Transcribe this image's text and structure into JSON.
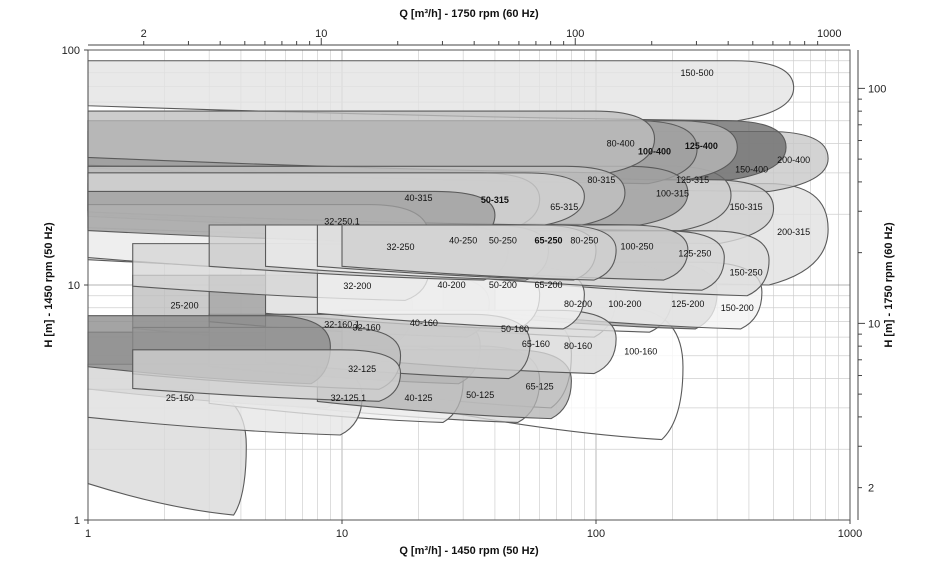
{
  "chart_data": {
    "type": "area",
    "x_scale": "log",
    "y_scale": "log",
    "xlabel_bottom": "Q [m³/h] - 1450 rpm (50 Hz)",
    "xlabel_top": "Q [m³/h] - 1750 rpm (60 Hz)",
    "ylabel_left": "H [m] - 1450 rpm (50 Hz)",
    "ylabel_right": "H [m] - 1750 rpm (60 Hz)",
    "xlim": [
      1,
      1000
    ],
    "ylim": [
      1,
      100
    ],
    "x_ticks_bottom": [
      "1",
      "10",
      "100",
      "1000"
    ],
    "x_ticks_top": [
      "2",
      "10",
      "100",
      "1000"
    ],
    "x_ticks_top_values": [
      2,
      10,
      100,
      1000
    ],
    "y_ticks_left": [
      "1",
      "10",
      "100"
    ],
    "y_ticks_right": [
      "2",
      "10",
      "100"
    ],
    "y_ticks_right_values": [
      2,
      10,
      100
    ],
    "secondary_axis_factor_q": 1.2069,
    "secondary_axis_factor_h": 1.4566,
    "grid": true,
    "series": [
      {
        "name": "25-150",
        "q": [
          1,
          4.2
        ],
        "h_top": 3.6,
        "h_bottom": 1.05,
        "shade": "#d8d8d8",
        "label_at": [
          2.3,
          3.3
        ]
      },
      {
        "name": "25-200",
        "q": [
          1,
          9
        ],
        "h_top": 7.4,
        "h_bottom": 3.8,
        "shade": "#8a8a8a",
        "label_at": [
          2.4,
          8.2
        ]
      },
      {
        "name": "32-125.1",
        "q": [
          1,
          12
        ],
        "h_top": 4.6,
        "h_bottom": 2.3,
        "shade": "#e6e6e6",
        "label_at": [
          10.6,
          3.3
        ]
      },
      {
        "name": "32-125",
        "q": [
          1.5,
          17
        ],
        "h_top": 5.3,
        "h_bottom": 3.2,
        "shade": "#cfcfcf",
        "label_at": [
          12,
          4.4
        ]
      },
      {
        "name": "32-160.1",
        "q": [
          1,
          10.5
        ],
        "h_top": 6.3,
        "h_bottom": 3.0,
        "shade": "#a9a9a9",
        "label_at": [
          10,
          6.8
        ]
      },
      {
        "name": "32-160",
        "q": [
          1.5,
          17
        ],
        "h_top": 6.6,
        "h_bottom": 3.6,
        "shade": "#bdbdbd",
        "label_at": [
          12.5,
          6.6
        ]
      },
      {
        "name": "32-200",
        "q": [
          1.5,
          19
        ],
        "h_top": 11.0,
        "h_bottom": 5.5,
        "shade": "#bdbdbd",
        "label_at": [
          11.5,
          9.9
        ]
      },
      {
        "name": "32-250",
        "q": [
          1.5,
          22
        ],
        "h_top": 15.0,
        "h_bottom": 8.6,
        "shade": "#d6d6d6",
        "label_at": [
          17,
          14.5
        ]
      },
      {
        "name": "32-250.1",
        "q": [
          1,
          22
        ],
        "h_top": 22.0,
        "h_bottom": 11.0,
        "shade": "#efefef",
        "label_at": [
          10,
          18.6
        ]
      },
      {
        "name": "40-125",
        "q": [
          3,
          30
        ],
        "h_top": 5.5,
        "h_bottom": 2.6,
        "shade": "#f1f1f1",
        "label_at": [
          20,
          3.3
        ]
      },
      {
        "name": "40-160",
        "q": [
          3,
          35
        ],
        "h_top": 7.5,
        "h_bottom": 3.8,
        "shade": "#bdbdbd",
        "label_at": [
          21,
          6.9
        ]
      },
      {
        "name": "40-200",
        "q": [
          3,
          38
        ],
        "h_top": 11.0,
        "h_bottom": 6.0,
        "shade": "#a5a5a5",
        "label_at": [
          27,
          10.0
        ]
      },
      {
        "name": "40-250",
        "q": [
          3,
          45
        ],
        "h_top": 18.0,
        "h_bottom": 10.5,
        "shade": "#d0d0d0",
        "label_at": [
          30,
          15.5
        ]
      },
      {
        "name": "40-315",
        "q": [
          1,
          40
        ],
        "h_top": 25.0,
        "h_bottom": 15.0,
        "shade": "#9f9f9f",
        "label_at": [
          20,
          23.5
        ]
      },
      {
        "name": "50-125",
        "q": [
          5,
          60
        ],
        "h_top": 5.5,
        "h_bottom": 2.6,
        "shade": "#dadada",
        "label_at": [
          35,
          3.4
        ]
      },
      {
        "name": "50-160",
        "q": [
          5,
          55
        ],
        "h_top": 7.5,
        "h_bottom": 4.0,
        "shade": "#c9c9c9",
        "label_at": [
          48,
          6.5
        ]
      },
      {
        "name": "50-200",
        "q": [
          5,
          60
        ],
        "h_top": 12.0,
        "h_bottom": 6.5,
        "shade": "#f4f4f4",
        "label_at": [
          43,
          10.0
        ]
      },
      {
        "name": "50-250",
        "q": [
          5,
          65
        ],
        "h_top": 18.0,
        "h_bottom": 10.5,
        "shade": "#ececec",
        "label_at": [
          43,
          15.5
        ]
      },
      {
        "name": "50-315",
        "q": [
          1,
          60
        ],
        "h_top": 30.0,
        "h_bottom": 17.0,
        "shade": "#b9b9b9",
        "label_at": [
          40,
          23.0
        ]
      },
      {
        "name": "65-125",
        "q": [
          8,
          80
        ],
        "h_top": 5.3,
        "h_bottom": 2.7,
        "shade": "#b3b3b3",
        "label_at": [
          60,
          3.7
        ]
      },
      {
        "name": "65-160",
        "q": [
          8,
          80
        ],
        "h_top": 7.8,
        "h_bottom": 3.0,
        "shade": "#ffffff",
        "label_at": [
          58,
          5.6
        ]
      },
      {
        "name": "65-200",
        "q": [
          8,
          90
        ],
        "h_top": 12.0,
        "h_bottom": 6.5,
        "shade": "#f0f0f0",
        "label_at": [
          65,
          10.0
        ]
      },
      {
        "name": "65-250",
        "q": [
          8,
          100
        ],
        "h_top": 18.0,
        "h_bottom": 10.5,
        "shade": "#dddddd",
        "label_at": [
          65,
          15.5
        ]
      },
      {
        "name": "65-315",
        "q": [
          1,
          90
        ],
        "h_top": 30.0,
        "h_bottom": 18.0,
        "shade": "#d2d2d2",
        "label_at": [
          75,
          21.5
        ]
      },
      {
        "name": "80-160",
        "q": [
          10,
          120
        ],
        "h_top": 7.8,
        "h_bottom": 4.2,
        "shade": "#d9d9d9",
        "label_at": [
          85,
          5.5
        ]
      },
      {
        "name": "80-200",
        "q": [
          10,
          120
        ],
        "h_top": 12.5,
        "h_bottom": 6.0,
        "shade": "#f2f2f2",
        "label_at": [
          85,
          8.3
        ]
      },
      {
        "name": "80-250",
        "q": [
          10,
          120
        ],
        "h_top": 18.0,
        "h_bottom": 10.5,
        "shade": "#cfcfcf",
        "label_at": [
          90,
          15.5
        ]
      },
      {
        "name": "80-315",
        "q": [
          1,
          130
        ],
        "h_top": 32.0,
        "h_bottom": 18.0,
        "shade": "#c2c2c2",
        "label_at": [
          105,
          28.0
        ]
      },
      {
        "name": "80-400",
        "q": [
          1,
          170
        ],
        "h_top": 55.0,
        "h_bottom": 30.0,
        "shade": "#bebebe",
        "label_at": [
          125,
          40.0
        ]
      },
      {
        "name": "100-160",
        "q": [
          20,
          220
        ],
        "h_top": 8.0,
        "h_bottom": 2.2,
        "shade": "#ffffff",
        "label_at": [
          150,
          5.2
        ]
      },
      {
        "name": "100-200",
        "q": [
          15,
          200
        ],
        "h_top": 12.5,
        "h_bottom": 6.3,
        "shade": "#f0f0f0",
        "label_at": [
          130,
          8.3
        ]
      },
      {
        "name": "100-250",
        "q": [
          15,
          230
        ],
        "h_top": 18.0,
        "h_bottom": 10.5,
        "shade": "#c5c5c5",
        "label_at": [
          145,
          14.6
        ]
      },
      {
        "name": "100-315",
        "q": [
          1,
          230
        ],
        "h_top": 32.0,
        "h_bottom": 18.0,
        "shade": "#a0a0a0",
        "label_at": [
          200,
          24.5
        ]
      },
      {
        "name": "100-400",
        "q": [
          1,
          250
        ],
        "h_top": 50.0,
        "h_bottom": 27.0,
        "shade": "#9d9d9d",
        "label_at": [
          170,
          37.0
        ]
      },
      {
        "name": "125-200",
        "q": [
          25,
          300
        ],
        "h_top": 12.5,
        "h_bottom": 6.5,
        "shade": "#9d9d9d",
        "label_at": [
          230,
          8.3
        ]
      },
      {
        "name": "125-250",
        "q": [
          25,
          320
        ],
        "h_top": 17.0,
        "h_bottom": 9.5,
        "shade": "#d6d6d6",
        "label_at": [
          245,
          13.6
        ]
      },
      {
        "name": "125-315",
        "q": [
          1,
          340
        ],
        "h_top": 32.0,
        "h_bottom": 17.0,
        "shade": "#cccccc",
        "label_at": [
          240,
          28.0
        ]
      },
      {
        "name": "125-400",
        "q": [
          1,
          360
        ],
        "h_top": 50.0,
        "h_bottom": 28.0,
        "shade": "#b8b8b8",
        "label_at": [
          260,
          39.0
        ]
      },
      {
        "name": "150-200",
        "q": [
          40,
          450
        ],
        "h_top": 12.5,
        "h_bottom": 6.5,
        "shade": "#f2f2f2",
        "label_at": [
          360,
          8.0
        ]
      },
      {
        "name": "150-250",
        "q": [
          40,
          480
        ],
        "h_top": 17.0,
        "h_bottom": 9.0,
        "shade": "#dcdcdc",
        "label_at": [
          390,
          11.3
        ]
      },
      {
        "name": "150-315",
        "q": [
          1,
          500
        ],
        "h_top": 28.0,
        "h_bottom": 15.0,
        "shade": "#cfcfcf",
        "label_at": [
          390,
          21.5
        ]
      },
      {
        "name": "150-400",
        "q": [
          1,
          560
        ],
        "h_top": 50.0,
        "h_bottom": 28.0,
        "shade": "#6a6a6a",
        "label_at": [
          410,
          31.0
        ]
      },
      {
        "name": "150-500",
        "q": [
          1,
          600
        ],
        "h_top": 90.0,
        "h_bottom": 50.0,
        "shade": "#e3e3e3",
        "label_at": [
          250,
          80.0
        ]
      },
      {
        "name": "200-315",
        "q": [
          1,
          820
        ],
        "h_top": 27.0,
        "h_bottom": 10.0,
        "shade": "#e0e0e0",
        "label_at": [
          600,
          16.8
        ]
      },
      {
        "name": "200-400",
        "q": [
          1,
          820
        ],
        "h_top": 45.0,
        "h_bottom": 25.0,
        "shade": "#c7c7c7",
        "label_at": [
          600,
          34.0
        ]
      }
    ],
    "bold_labels": [
      "100-400",
      "125-400",
      "50-315",
      "65-250"
    ]
  }
}
